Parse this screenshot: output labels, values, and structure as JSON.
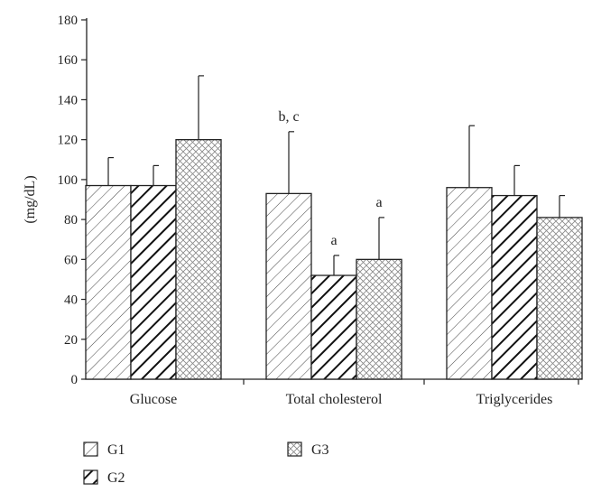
{
  "chart_data": {
    "type": "bar",
    "title": "",
    "xlabel": "",
    "ylabel": "(mg/dL)",
    "ylim": [
      0,
      180
    ],
    "yticks": [
      0,
      20,
      40,
      60,
      80,
      100,
      120,
      140,
      160,
      180
    ],
    "categories": [
      "Glucose",
      "Total cholesterol",
      "Triglycerides"
    ],
    "series": [
      {
        "name": "G1",
        "values": [
          97,
          93,
          96
        ],
        "errors": [
          14,
          31,
          31
        ],
        "pattern": "thin-diagonal"
      },
      {
        "name": "G2",
        "values": [
          97,
          52,
          92
        ],
        "errors": [
          10,
          10,
          15
        ],
        "pattern": "thick-diagonal"
      },
      {
        "name": "G3",
        "values": [
          120,
          60,
          81
        ],
        "errors": [
          32,
          21,
          11
        ],
        "pattern": "crosshatch"
      }
    ],
    "annotations": [
      {
        "category": 1,
        "series": 0,
        "text": "b, c"
      },
      {
        "category": 1,
        "series": 1,
        "text": "a"
      },
      {
        "category": 1,
        "series": 2,
        "text": "a"
      }
    ],
    "legend": "bottom-left",
    "grid": false
  },
  "colors": {
    "axis": "#222222",
    "bar_fill": "#ffffff",
    "hatch": "#222222"
  }
}
